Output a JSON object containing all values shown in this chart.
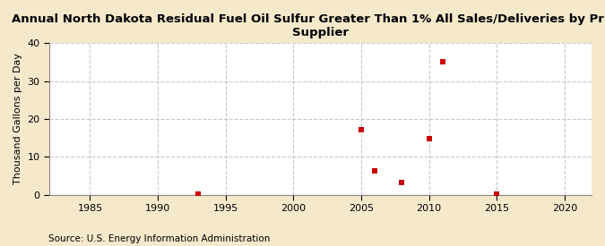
{
  "title": "Annual North Dakota Residual Fuel Oil Sulfur Greater Than 1% All Sales/Deliveries by Prime\nSupplier",
  "ylabel": "Thousand Gallons per Day",
  "source": "Source: U.S. Energy Information Administration",
  "background_color": "#f5e9cc",
  "plot_background_color": "#ffffff",
  "data_points": [
    {
      "year": 1993,
      "value": 0.2
    },
    {
      "year": 2005,
      "value": 17.2
    },
    {
      "year": 2006,
      "value": 6.2
    },
    {
      "year": 2008,
      "value": 3.1
    },
    {
      "year": 2011,
      "value": 35.0
    },
    {
      "year": 2010,
      "value": 14.9
    },
    {
      "year": 2015,
      "value": 0.2
    }
  ],
  "marker_color": "#cc0000",
  "marker_size": 5,
  "marker_style": "s",
  "xlim": [
    1982,
    2022
  ],
  "ylim": [
    0,
    40
  ],
  "xticks": [
    1985,
    1990,
    1995,
    2000,
    2005,
    2010,
    2015,
    2020
  ],
  "yticks": [
    0,
    10,
    20,
    30,
    40
  ],
  "title_fontsize": 9.5,
  "label_fontsize": 8,
  "tick_fontsize": 8,
  "source_fontsize": 7.5,
  "grid_color": "#bbbbbb",
  "grid_style": "--",
  "grid_alpha": 0.8
}
